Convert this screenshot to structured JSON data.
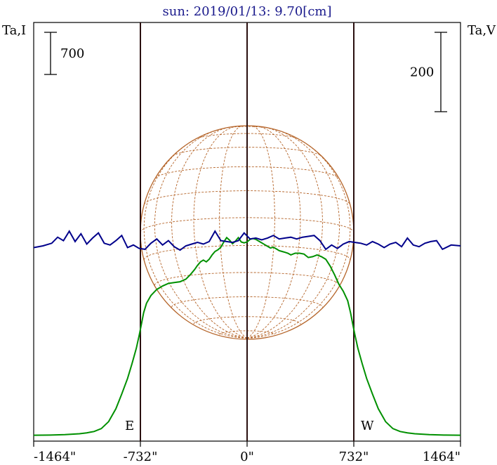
{
  "chart_data": {
    "type": "line",
    "title": "sun: 2019/01/13: 9.70[cm]",
    "left_axis_label": "Ta,I",
    "right_axis_label": "Ta,V",
    "scale_bar_left": "700",
    "scale_bar_right": "200",
    "x_tick_labels": [
      "-1464\"",
      "-732\"",
      "0\"",
      "732\"",
      "1464\""
    ],
    "x_ticks": [
      -1464,
      -732,
      0,
      732,
      1464
    ],
    "xlim": [
      -1464,
      1464
    ],
    "limb_markers": [
      {
        "label": "E",
        "x": -732
      },
      {
        "label": "W",
        "x": 732
      }
    ],
    "center_line_x": 0,
    "disk": {
      "radius": 732,
      "longitude_lines_deg": [
        -75,
        -60,
        -45,
        -30,
        -15,
        0,
        15,
        30,
        45,
        60,
        75
      ],
      "latitude_lines_deg": [
        -75,
        -60,
        -45,
        -30,
        -15,
        0,
        15,
        30,
        45,
        60,
        75
      ],
      "tilt_deg": -8
    },
    "colors": {
      "I": "#009000",
      "V": "#00008b",
      "disk": "#b5652a",
      "markers": "#2a0f0f",
      "frame": "#000000",
      "title": "#1a1a8c"
    },
    "series": [
      {
        "key": "I",
        "x": [
          -1464,
          -1350,
          -1250,
          -1150,
          -1100,
          -1050,
          -1000,
          -950,
          -900,
          -860,
          -820,
          -790,
          -760,
          -740,
          -725,
          -710,
          -690,
          -660,
          -620,
          -580,
          -540,
          -500,
          -460,
          -420,
          -390,
          -360,
          -340,
          -320,
          -300,
          -280,
          -260,
          -240,
          -220,
          -200,
          -180,
          -160,
          -140,
          -120,
          -100,
          -80,
          -60,
          -40,
          -20,
          0,
          20,
          40,
          60,
          80,
          100,
          120,
          140,
          160,
          180,
          200,
          220,
          240,
          260,
          280,
          300,
          330,
          360,
          390,
          420,
          450,
          480,
          510,
          540,
          570,
          600,
          630,
          660,
          690,
          710,
          725,
          740,
          760,
          790,
          820,
          860,
          900,
          950,
          1000,
          1050,
          1100,
          1150,
          1250,
          1350,
          1464
        ],
        "y": [
          0.03,
          0.05,
          0.1,
          0.2,
          0.31,
          0.46,
          0.8,
          1.6,
          3.1,
          4.8,
          6.6,
          8.3,
          10.1,
          11.6,
          12.9,
          14.2,
          15.3,
          16.2,
          16.9,
          17.3,
          17.6,
          17.7,
          17.8,
          18.1,
          18.6,
          19.2,
          19.7,
          20.1,
          20.3,
          20.1,
          20.4,
          20.9,
          21.3,
          21.5,
          21.8,
          22.4,
          22.9,
          22.6,
          22.2,
          22.5,
          22.9,
          22.4,
          22.3,
          22.4,
          22.7,
          22.8,
          22.7,
          22.5,
          22.3,
          22.1,
          21.9,
          21.7,
          21.8,
          21.6,
          21.4,
          21.3,
          21.2,
          21.1,
          20.9,
          21.1,
          21.1,
          21.0,
          20.6,
          20.7,
          20.9,
          20.7,
          20.4,
          19.6,
          18.6,
          17.5,
          16.7,
          15.6,
          14.2,
          12.9,
          11.6,
          10.1,
          8.3,
          6.6,
          4.8,
          3.1,
          1.6,
          0.8,
          0.46,
          0.31,
          0.2,
          0.1,
          0.05,
          0.03
        ]
      },
      {
        "key": "V",
        "x": [
          -1464,
          -1400,
          -1340,
          -1300,
          -1260,
          -1220,
          -1180,
          -1140,
          -1100,
          -1060,
          -1020,
          -980,
          -940,
          -900,
          -860,
          -820,
          -780,
          -740,
          -700,
          -660,
          -620,
          -580,
          -540,
          -500,
          -460,
          -420,
          -380,
          -340,
          -300,
          -260,
          -220,
          -180,
          -140,
          -100,
          -60,
          -20,
          20,
          60,
          100,
          140,
          180,
          220,
          260,
          300,
          340,
          380,
          420,
          460,
          500,
          540,
          580,
          620,
          660,
          700,
          740,
          780,
          820,
          860,
          900,
          940,
          980,
          1020,
          1060,
          1100,
          1140,
          1180,
          1220,
          1260,
          1300,
          1340,
          1400,
          1464
        ],
        "y": [
          -0.2,
          0.0,
          0.3,
          1.0,
          0.6,
          1.7,
          0.5,
          1.4,
          0.2,
          0.9,
          1.5,
          0.3,
          0.1,
          0.6,
          1.2,
          -0.2,
          0.1,
          -0.3,
          -0.4,
          0.3,
          0.8,
          0.1,
          0.6,
          -0.1,
          -0.5,
          0.0,
          0.2,
          0.4,
          0.2,
          0.5,
          1.7,
          0.6,
          0.5,
          0.4,
          0.6,
          1.5,
          0.8,
          0.9,
          0.7,
          0.9,
          1.2,
          0.8,
          0.9,
          1.0,
          0.8,
          1.0,
          1.1,
          1.2,
          0.6,
          -0.4,
          0.1,
          -0.3,
          0.2,
          0.5,
          0.4,
          0.3,
          0.1,
          0.5,
          0.2,
          -0.2,
          0.2,
          0.4,
          -0.1,
          0.9,
          0.1,
          -0.1,
          0.3,
          0.5,
          0.6,
          -0.4,
          0.1,
          0.0
        ]
      }
    ],
    "I_units_per_bar": 700,
    "V_units_per_bar": 200
  }
}
